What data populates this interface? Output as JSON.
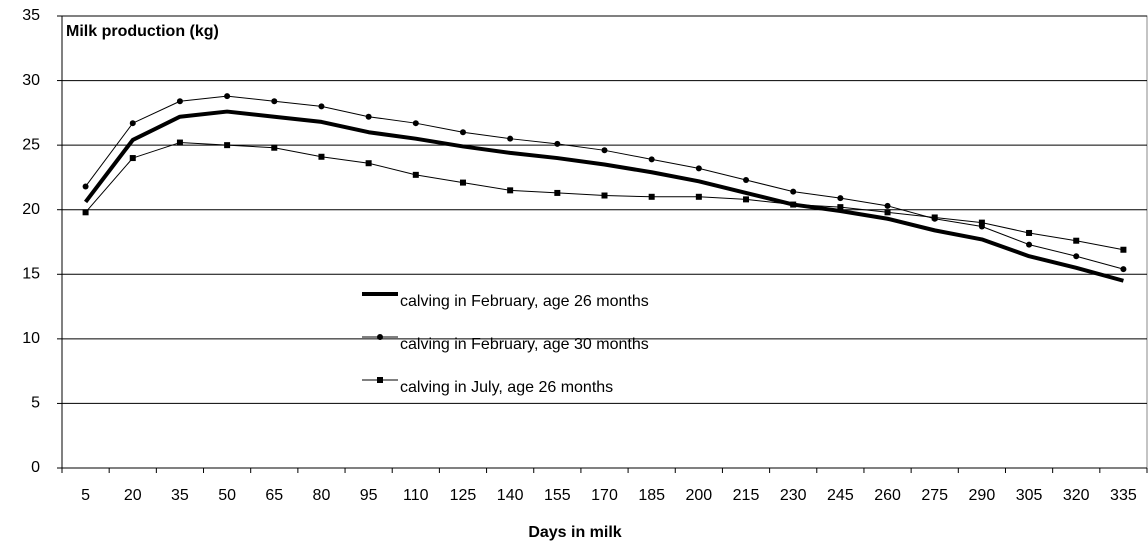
{
  "chart_data": {
    "type": "line",
    "title": "Milk production (kg)",
    "x_label": "Days in milk",
    "categories": [
      5,
      20,
      35,
      50,
      65,
      80,
      95,
      110,
      125,
      140,
      155,
      170,
      185,
      200,
      215,
      230,
      245,
      260,
      275,
      290,
      305,
      320,
      335
    ],
    "ylim": [
      0,
      35
    ],
    "yticks": [
      0,
      5,
      10,
      15,
      20,
      25,
      30,
      35
    ],
    "grid": true,
    "series": [
      {
        "name": "calving in February, age 26 months",
        "color": "#000000",
        "marker": "none",
        "line_width": 4,
        "values": [
          20.6,
          25.4,
          27.2,
          27.6,
          27.2,
          26.8,
          26.0,
          25.5,
          24.9,
          24.4,
          24.0,
          23.5,
          22.9,
          22.2,
          21.3,
          20.4,
          19.9,
          19.3,
          18.4,
          17.7,
          16.4,
          15.5,
          14.5
        ]
      },
      {
        "name": "calving in February, age 30 months",
        "color": "#000000",
        "marker": "circle",
        "line_width": 1,
        "values": [
          21.8,
          26.7,
          28.4,
          28.8,
          28.4,
          28.0,
          27.2,
          26.7,
          26.0,
          25.5,
          25.1,
          24.6,
          23.9,
          23.2,
          22.3,
          21.4,
          20.9,
          20.3,
          19.3,
          18.7,
          17.3,
          16.4,
          15.4
        ]
      },
      {
        "name": "calving in July, age 26 months",
        "color": "#000000",
        "marker": "square",
        "line_width": 1,
        "values": [
          19.8,
          24.0,
          25.2,
          25.0,
          24.8,
          24.1,
          23.6,
          22.7,
          22.1,
          21.5,
          21.3,
          21.1,
          21.0,
          21.0,
          20.8,
          20.4,
          20.2,
          19.8,
          19.4,
          19.0,
          18.2,
          17.6,
          16.9
        ]
      }
    ]
  }
}
